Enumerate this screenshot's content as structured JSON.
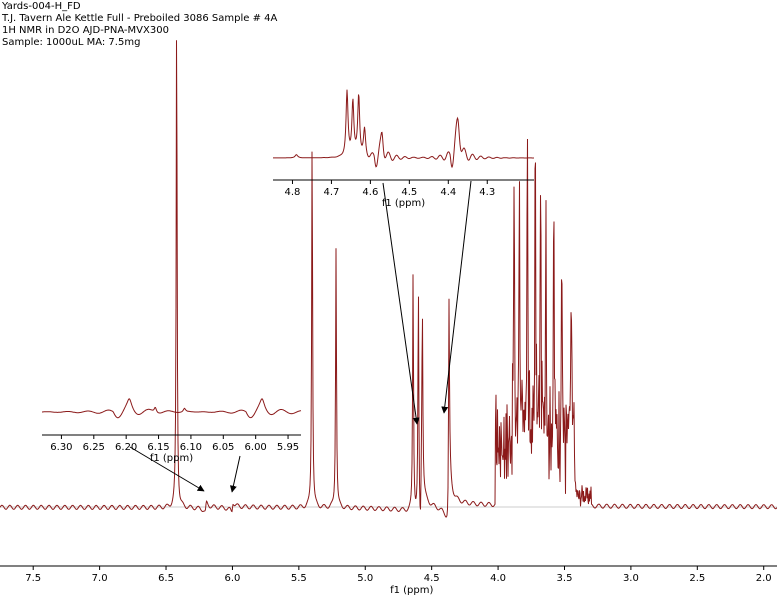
{
  "header": {
    "line1": "Yards-004-H_FD",
    "line2": "T.J. Tavern Ale Kettle Full - Preboiled 3086 Sample # 4A",
    "line3": "1H NMR in D2O AJD-PNA-MVX300",
    "line4": "Sample: 1000uL MA: 7.5mg"
  },
  "colors": {
    "spectrum": "#8b1a1a",
    "axis": "#000000",
    "baseline": "#999999"
  },
  "chart_data": [
    {
      "type": "line",
      "role": "main-spectrum",
      "xlabel": "f1 (ppm)",
      "xlim": [
        7.75,
        1.9
      ],
      "x_reversed": true,
      "x_ticks": [
        "7.5",
        "7.0",
        "6.5",
        "6.0",
        "5.5",
        "5.0",
        "4.5",
        "4.0",
        "3.5",
        "3.0",
        "2.5",
        "2.0"
      ],
      "peaks": [
        {
          "x": 6.42,
          "height": 1.0
        },
        {
          "x": 5.4,
          "height": 0.75
        },
        {
          "x": 5.22,
          "height": 0.52
        },
        {
          "x": 4.64,
          "height": 0.48
        },
        {
          "x": 4.6,
          "height": 0.46
        },
        {
          "x": 4.57,
          "height": 0.34
        },
        {
          "x": 4.37,
          "height": 0.4
        },
        {
          "x": 3.88,
          "height": 0.5
        },
        {
          "x": 3.84,
          "height": 0.55
        },
        {
          "x": 3.78,
          "height": 0.62
        },
        {
          "x": 3.72,
          "height": 0.58
        },
        {
          "x": 3.68,
          "height": 0.52
        },
        {
          "x": 3.64,
          "height": 0.47
        },
        {
          "x": 3.58,
          "height": 0.43
        },
        {
          "x": 3.52,
          "height": 0.36
        },
        {
          "x": 3.45,
          "height": 0.3
        }
      ]
    },
    {
      "type": "line",
      "role": "inset-upper",
      "xlabel": "f1 (ppm)",
      "xlim": [
        4.85,
        4.18
      ],
      "x_ticks": [
        "4.8",
        "4.7",
        "4.6",
        "4.5",
        "4.4",
        "4.3"
      ]
    },
    {
      "type": "line",
      "role": "inset-lower",
      "xlabel": "f1 (ppm)",
      "xlim": [
        6.33,
        5.93
      ],
      "x_ticks": [
        "6.30",
        "6.25",
        "6.20",
        "6.15",
        "6.10",
        "6.05",
        "6.00",
        "5.95"
      ]
    }
  ]
}
